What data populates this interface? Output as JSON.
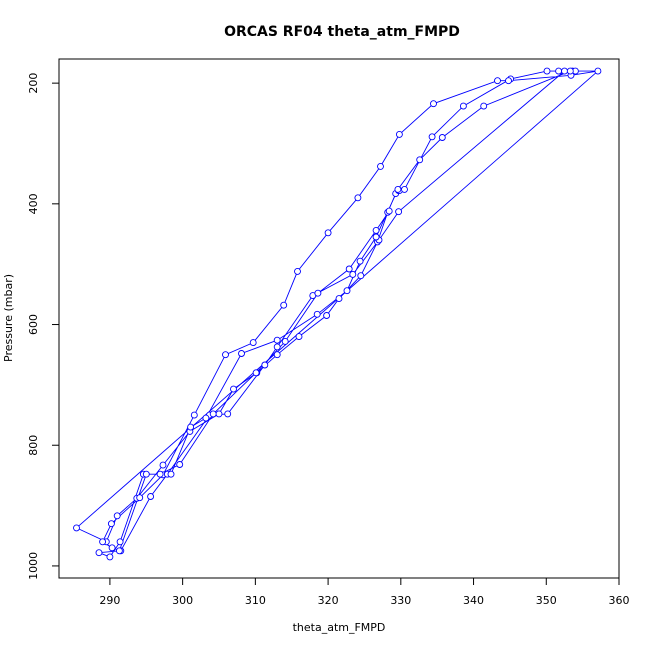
{
  "chart_data": {
    "type": "scatter",
    "title": "ORCAS RF04 theta_atm_FMPD",
    "xlabel": "theta_atm_FMPD",
    "ylabel": "Pressure (mbar)",
    "xlim": [
      283,
      360
    ],
    "ylim": [
      1020,
      160
    ],
    "y_reversed": true,
    "x_ticks": [
      290,
      300,
      310,
      320,
      330,
      340,
      350,
      360
    ],
    "y_ticks": [
      200,
      400,
      600,
      800,
      1000
    ],
    "grid": false,
    "legend": "none",
    "series_color": "#0000ff",
    "marker": "open-circle",
    "line": true,
    "x": [
      285.4,
      289.5,
      291.0,
      293.7,
      297.3,
      301.0,
      305.0,
      307.0,
      310.2,
      313.0,
      316.0,
      319.8,
      321.5,
      324.5,
      326.8,
      328.2,
      329.3,
      329.7,
      329.8,
      330.5,
      334.3,
      338.6,
      345.1,
      350.1,
      351.7,
      353.6,
      357.1,
      353.4,
      344.8,
      343.3,
      334.5,
      329.8,
      327.2,
      324.1,
      320.0,
      315.8,
      313.9,
      309.7,
      305.9,
      301.6,
      297.3,
      294.1,
      290.2,
      289.0,
      290.3,
      291.5,
      295.6,
      297.9,
      303.7,
      306.2,
      311.3,
      313.0,
      317.9,
      323.4,
      327.0,
      329.7,
      352.5,
      354.0,
      353.3,
      341.4,
      335.7,
      332.6,
      329.6,
      326.6,
      324.4,
      322.6,
      318.5,
      313.0,
      308.1,
      303.2,
      301.1,
      298.4,
      294.6,
      291.4,
      290.0,
      288.5,
      291.3,
      295.0,
      296.9,
      299.6,
      304.2,
      310.1,
      314.1,
      318.6,
      322.9,
      326.6,
      328.4
    ],
    "y": [
      937,
      960,
      917,
      888,
      833,
      777,
      748,
      707,
      680,
      650,
      620,
      585,
      557,
      519,
      463,
      414,
      383,
      378,
      378,
      376,
      289,
      238,
      193,
      180,
      180,
      180,
      180,
      187,
      196,
      196,
      234,
      285,
      338,
      390,
      448,
      512,
      568,
      630,
      650,
      750,
      849,
      887,
      930,
      960,
      970,
      975,
      885,
      848,
      750,
      748,
      667,
      637,
      552,
      517,
      460,
      413,
      180,
      180,
      180,
      238,
      290,
      327,
      376,
      455,
      495,
      544,
      583,
      626,
      648,
      755,
      770,
      848,
      848,
      960,
      985,
      978,
      975,
      848,
      848,
      832,
      748,
      680,
      628,
      548,
      508,
      444,
      412
    ],
    "path_breaks": [],
    "extra_segments": [
      {
        "from": [
          285.4,
          937
        ],
        "to": [
          357.1,
          180
        ]
      }
    ]
  }
}
